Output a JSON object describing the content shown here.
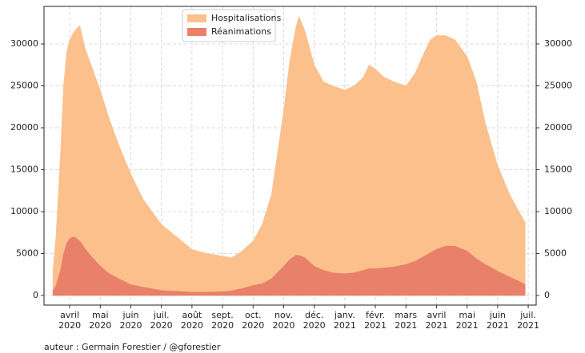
{
  "chart_data": {
    "type": "area",
    "x": [
      -0.55,
      -0.45,
      -0.3,
      -0.2,
      -0.1,
      0,
      0.15,
      0.33,
      0.5,
      0.7,
      1,
      1.3,
      1.6,
      2,
      2.4,
      3,
      3.5,
      4,
      4.5,
      5,
      5.3,
      5.6,
      6,
      6.3,
      6.6,
      7,
      7.2,
      7.4,
      7.5,
      7.7,
      8,
      8.3,
      8.6,
      9,
      9.3,
      9.6,
      9.8,
      10,
      10.3,
      10.6,
      11,
      11.3,
      11.6,
      11.8,
      12,
      12.3,
      12.6,
      13,
      13.3,
      13.6,
      14,
      14.4,
      14.7,
      14.9
    ],
    "series": [
      {
        "name": "Hospitalisations",
        "color": "#fcc08c",
        "values": [
          2900,
          7000,
          17000,
          25000,
          29000,
          30500,
          31500,
          32200,
          29500,
          27500,
          24500,
          21000,
          18000,
          14500,
          11500,
          8500,
          7000,
          5500,
          5000,
          4700,
          4500,
          5200,
          6500,
          8500,
          12000,
          22000,
          28000,
          32000,
          33300,
          31500,
          27500,
          25500,
          25000,
          24500,
          25000,
          26000,
          27500,
          27000,
          26000,
          25500,
          25000,
          26500,
          29000,
          30500,
          31000,
          31000,
          30500,
          28500,
          25500,
          20500,
          15500,
          12000,
          10000,
          8700
        ]
      },
      {
        "name": "Réanimations",
        "color": "#e9806a",
        "values": [
          500,
          1200,
          3000,
          5000,
          6200,
          6800,
          7000,
          6500,
          5600,
          4700,
          3500,
          2600,
          2000,
          1300,
          1000,
          600,
          500,
          400,
          400,
          450,
          550,
          800,
          1200,
          1400,
          2000,
          3500,
          4300,
          4800,
          4800,
          4500,
          3500,
          3000,
          2700,
          2600,
          2700,
          3000,
          3200,
          3200,
          3300,
          3400,
          3700,
          4100,
          4700,
          5100,
          5500,
          5900,
          5900,
          5300,
          4400,
          3700,
          2900,
          2200,
          1700,
          1300
        ]
      }
    ],
    "xlim": [
      -0.84,
      15.26
    ],
    "xticks": [
      {
        "value": 0,
        "label": "avril\n2020"
      },
      {
        "value": 1,
        "label": "mai\n2020"
      },
      {
        "value": 2,
        "label": "juin\n2020"
      },
      {
        "value": 3,
        "label": "juil.\n2020"
      },
      {
        "value": 4,
        "label": "août\n2020"
      },
      {
        "value": 5,
        "label": "sept.\n2020"
      },
      {
        "value": 6,
        "label": "oct.\n2020"
      },
      {
        "value": 7,
        "label": "nov.\n2020"
      },
      {
        "value": 8,
        "label": "déc.\n2020"
      },
      {
        "value": 9,
        "label": "janv.\n2021"
      },
      {
        "value": 10,
        "label": "févr.\n2021"
      },
      {
        "value": 11,
        "label": "mars\n2021"
      },
      {
        "value": 12,
        "label": "avril\n2021"
      },
      {
        "value": 13,
        "label": "mai\n2021"
      },
      {
        "value": 14,
        "label": "juin\n2021"
      },
      {
        "value": 15,
        "label": "juil.\n2021"
      }
    ],
    "ylim": [
      -1143,
      34476
    ],
    "yticks": [
      0,
      5000,
      10000,
      15000,
      20000,
      25000,
      30000
    ],
    "y2lim": [
      -1143,
      34476
    ],
    "y2ticks": [
      0,
      5000,
      10000,
      15000,
      20000,
      25000,
      30000
    ],
    "grid": true,
    "note": "auteur : Germain Forestier / @gforestier"
  }
}
